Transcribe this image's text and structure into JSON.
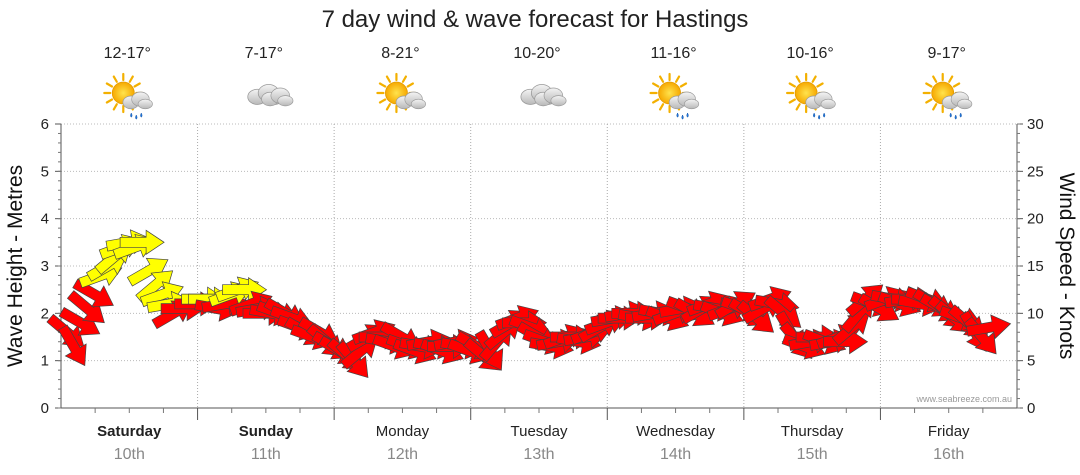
{
  "chart_data": {
    "type": "scatter",
    "title": "7 day wind & wave forecast for Hastings",
    "ylabel": "Wave Height - Metres",
    "y2label": "Wind Speed - Knots",
    "ylim": [
      0,
      6
    ],
    "y2lim": [
      0,
      30
    ],
    "yticks": [
      "0",
      "1",
      "2",
      "3",
      "4",
      "5",
      "6"
    ],
    "y2ticks": [
      "0",
      "5",
      "10",
      "15",
      "20",
      "25",
      "30"
    ],
    "grid": true,
    "credit": "www.seabreeze.com.au",
    "days": [
      {
        "name": "Saturday",
        "date": "10th",
        "bold": true,
        "temp": "12-17°",
        "icon": "sun-cloud-rain-icon"
      },
      {
        "name": "Sunday",
        "date": "11th",
        "bold": true,
        "temp": "7-17°",
        "icon": "cloud-icon"
      },
      {
        "name": "Monday",
        "date": "12th",
        "bold": false,
        "temp": "8-21°",
        "icon": "sun-cloud-icon"
      },
      {
        "name": "Tuesday",
        "date": "13th",
        "bold": false,
        "temp": "10-20°",
        "icon": "cloud-icon"
      },
      {
        "name": "Wednesday",
        "date": "14th",
        "bold": false,
        "temp": "11-16°",
        "icon": "sun-cloud-rain-icon"
      },
      {
        "name": "Thursday",
        "date": "15th",
        "bold": false,
        "temp": "10-16°",
        "icon": "sun-cloud-rain-icon"
      },
      {
        "name": "Friday",
        "date": "16th",
        "bold": false,
        "temp": "9-17°",
        "icon": "sun-cloud-rain-icon"
      }
    ],
    "series": [
      {
        "kind": "wind-arrows",
        "colors": {
          "light": "#ffff00",
          "strong": "#ff0000"
        },
        "points": [
          {
            "t": 0.0,
            "speed": 8,
            "dir": 40,
            "color": "strong"
          },
          {
            "t": 0.05,
            "speed": 6.5,
            "dir": 60,
            "color": "strong"
          },
          {
            "t": 0.1,
            "speed": 9,
            "dir": 30,
            "color": "strong"
          },
          {
            "t": 0.15,
            "speed": 10.5,
            "dir": 40,
            "color": "strong"
          },
          {
            "t": 0.2,
            "speed": 12,
            "dir": 30,
            "color": "strong"
          },
          {
            "t": 0.25,
            "speed": 14,
            "dir": -20,
            "color": "light"
          },
          {
            "t": 0.3,
            "speed": 15,
            "dir": -30,
            "color": "light"
          },
          {
            "t": 0.35,
            "speed": 16,
            "dir": -40,
            "color": "light"
          },
          {
            "t": 0.4,
            "speed": 17,
            "dir": -20,
            "color": "light"
          },
          {
            "t": 0.45,
            "speed": 17.5,
            "dir": -10,
            "color": "light"
          },
          {
            "t": 0.5,
            "speed": 17,
            "dir": -20,
            "color": "light"
          },
          {
            "t": 0.55,
            "speed": 17.5,
            "dir": 0,
            "color": "light"
          },
          {
            "t": 0.6,
            "speed": 14.5,
            "dir": -30,
            "color": "light"
          },
          {
            "t": 0.65,
            "speed": 13,
            "dir": -40,
            "color": "light"
          },
          {
            "t": 0.7,
            "speed": 12,
            "dir": -20,
            "color": "light"
          },
          {
            "t": 0.75,
            "speed": 11,
            "dir": -10,
            "color": "light"
          },
          {
            "t": 0.78,
            "speed": 10,
            "dir": -30,
            "color": "strong"
          },
          {
            "t": 0.85,
            "speed": 10.5,
            "dir": 0,
            "color": "strong"
          },
          {
            "t": 0.95,
            "speed": 11,
            "dir": 0,
            "color": "strong"
          },
          {
            "t": 1.0,
            "speed": 11.5,
            "dir": 0,
            "color": "light"
          },
          {
            "t": 1.05,
            "speed": 11.5,
            "dir": 0,
            "color": "light"
          },
          {
            "t": 1.1,
            "speed": 10.5,
            "dir": 10,
            "color": "strong"
          },
          {
            "t": 1.15,
            "speed": 11,
            "dir": -10,
            "color": "strong"
          },
          {
            "t": 1.2,
            "speed": 12,
            "dir": -20,
            "color": "light"
          },
          {
            "t": 1.25,
            "speed": 12.5,
            "dir": -20,
            "color": "light"
          },
          {
            "t": 1.3,
            "speed": 12.5,
            "dir": 0,
            "color": "light"
          },
          {
            "t": 1.35,
            "speed": 11,
            "dir": -20,
            "color": "strong"
          },
          {
            "t": 1.4,
            "speed": 10.5,
            "dir": -10,
            "color": "strong"
          },
          {
            "t": 1.45,
            "speed": 10,
            "dir": 0,
            "color": "strong"
          },
          {
            "t": 1.5,
            "speed": 10,
            "dir": 10,
            "color": "strong"
          },
          {
            "t": 1.55,
            "speed": 10,
            "dir": 20,
            "color": "strong"
          },
          {
            "t": 1.6,
            "speed": 10,
            "dir": 30,
            "color": "strong"
          },
          {
            "t": 1.65,
            "speed": 9.5,
            "dir": 20,
            "color": "strong"
          },
          {
            "t": 1.7,
            "speed": 8.5,
            "dir": 20,
            "color": "strong"
          },
          {
            "t": 1.75,
            "speed": 8,
            "dir": 30,
            "color": "strong"
          },
          {
            "t": 1.8,
            "speed": 7.5,
            "dir": 20,
            "color": "strong"
          },
          {
            "t": 1.85,
            "speed": 8,
            "dir": 30,
            "color": "strong"
          },
          {
            "t": 1.9,
            "speed": 7,
            "dir": 40,
            "color": "strong"
          },
          {
            "t": 1.95,
            "speed": 6.5,
            "dir": 30,
            "color": "strong"
          },
          {
            "t": 2.0,
            "speed": 6,
            "dir": 30,
            "color": "strong"
          },
          {
            "t": 2.05,
            "speed": 5.5,
            "dir": 40,
            "color": "strong"
          },
          {
            "t": 2.1,
            "speed": 5,
            "dir": 50,
            "color": "strong"
          },
          {
            "t": 2.15,
            "speed": 6,
            "dir": -40,
            "color": "strong"
          },
          {
            "t": 2.2,
            "speed": 7.5,
            "dir": -30,
            "color": "strong"
          },
          {
            "t": 2.25,
            "speed": 8,
            "dir": -20,
            "color": "strong"
          },
          {
            "t": 2.3,
            "speed": 7.5,
            "dir": 0,
            "color": "strong"
          },
          {
            "t": 2.35,
            "speed": 7,
            "dir": 10,
            "color": "strong"
          },
          {
            "t": 2.4,
            "speed": 6.5,
            "dir": 20,
            "color": "strong"
          },
          {
            "t": 2.45,
            "speed": 7.5,
            "dir": 30,
            "color": "strong"
          },
          {
            "t": 2.5,
            "speed": 6.5,
            "dir": 20,
            "color": "strong"
          },
          {
            "t": 2.55,
            "speed": 6,
            "dir": 20,
            "color": "strong"
          },
          {
            "t": 2.6,
            "speed": 6.5,
            "dir": 10,
            "color": "strong"
          },
          {
            "t": 2.65,
            "speed": 7,
            "dir": -10,
            "color": "strong"
          },
          {
            "t": 2.7,
            "speed": 6.5,
            "dir": 10,
            "color": "strong"
          },
          {
            "t": 2.75,
            "speed": 6,
            "dir": 20,
            "color": "strong"
          },
          {
            "t": 2.8,
            "speed": 6.5,
            "dir": 0,
            "color": "strong"
          },
          {
            "t": 2.85,
            "speed": 7,
            "dir": -10,
            "color": "strong"
          },
          {
            "t": 2.9,
            "speed": 6.5,
            "dir": 10,
            "color": "strong"
          },
          {
            "t": 2.95,
            "speed": 6,
            "dir": 20,
            "color": "strong"
          },
          {
            "t": 3.0,
            "speed": 6.5,
            "dir": 30,
            "color": "strong"
          },
          {
            "t": 3.05,
            "speed": 5.5,
            "dir": 40,
            "color": "strong"
          },
          {
            "t": 3.1,
            "speed": 6,
            "dir": 60,
            "color": "strong"
          },
          {
            "t": 3.15,
            "speed": 7,
            "dir": -50,
            "color": "strong"
          },
          {
            "t": 3.2,
            "speed": 8,
            "dir": -40,
            "color": "strong"
          },
          {
            "t": 3.25,
            "speed": 9,
            "dir": -30,
            "color": "strong"
          },
          {
            "t": 3.3,
            "speed": 9.5,
            "dir": -20,
            "color": "strong"
          },
          {
            "t": 3.35,
            "speed": 9,
            "dir": 0,
            "color": "strong"
          },
          {
            "t": 3.4,
            "speed": 8.5,
            "dir": 20,
            "color": "strong"
          },
          {
            "t": 3.45,
            "speed": 7.5,
            "dir": 30,
            "color": "strong"
          },
          {
            "t": 3.5,
            "speed": 7,
            "dir": 20,
            "color": "strong"
          },
          {
            "t": 3.55,
            "speed": 6.5,
            "dir": 10,
            "color": "strong"
          },
          {
            "t": 3.6,
            "speed": 7,
            "dir": -10,
            "color": "strong"
          },
          {
            "t": 3.65,
            "speed": 7.5,
            "dir": -20,
            "color": "strong"
          },
          {
            "t": 3.7,
            "speed": 7.5,
            "dir": 0,
            "color": "strong"
          },
          {
            "t": 3.75,
            "speed": 7,
            "dir": 10,
            "color": "strong"
          },
          {
            "t": 3.8,
            "speed": 7.5,
            "dir": -10,
            "color": "strong"
          },
          {
            "t": 3.85,
            "speed": 8,
            "dir": -20,
            "color": "strong"
          },
          {
            "t": 3.9,
            "speed": 8.5,
            "dir": -30,
            "color": "strong"
          },
          {
            "t": 3.95,
            "speed": 9,
            "dir": -20,
            "color": "strong"
          },
          {
            "t": 4.0,
            "speed": 9.5,
            "dir": -10,
            "color": "strong"
          },
          {
            "t": 4.05,
            "speed": 9.5,
            "dir": 0,
            "color": "strong"
          },
          {
            "t": 4.1,
            "speed": 10,
            "dir": -10,
            "color": "strong"
          },
          {
            "t": 4.15,
            "speed": 10,
            "dir": 0,
            "color": "strong"
          },
          {
            "t": 4.2,
            "speed": 9.5,
            "dir": 10,
            "color": "strong"
          },
          {
            "t": 4.25,
            "speed": 9.5,
            "dir": 0,
            "color": "strong"
          },
          {
            "t": 4.3,
            "speed": 10,
            "dir": -10,
            "color": "strong"
          },
          {
            "t": 4.35,
            "speed": 10,
            "dir": 10,
            "color": "strong"
          },
          {
            "t": 4.4,
            "speed": 9.5,
            "dir": 20,
            "color": "strong"
          },
          {
            "t": 4.45,
            "speed": 10,
            "dir": -20,
            "color": "strong"
          },
          {
            "t": 4.5,
            "speed": 10.5,
            "dir": -10,
            "color": "strong"
          },
          {
            "t": 4.55,
            "speed": 10.5,
            "dir": 20,
            "color": "strong"
          },
          {
            "t": 4.6,
            "speed": 10,
            "dir": 30,
            "color": "strong"
          },
          {
            "t": 4.65,
            "speed": 10.5,
            "dir": -30,
            "color": "strong"
          },
          {
            "t": 4.7,
            "speed": 11,
            "dir": -20,
            "color": "strong"
          },
          {
            "t": 4.75,
            "speed": 10.5,
            "dir": 10,
            "color": "strong"
          },
          {
            "t": 4.8,
            "speed": 10,
            "dir": 20,
            "color": "strong"
          },
          {
            "t": 4.85,
            "speed": 10.5,
            "dir": -20,
            "color": "strong"
          },
          {
            "t": 4.9,
            "speed": 11,
            "dir": -30,
            "color": "strong"
          },
          {
            "t": 4.95,
            "speed": 10.5,
            "dir": 20,
            "color": "strong"
          },
          {
            "t": 5.0,
            "speed": 10,
            "dir": 30,
            "color": "strong"
          },
          {
            "t": 5.05,
            "speed": 9.5,
            "dir": 40,
            "color": "strong"
          },
          {
            "t": 5.1,
            "speed": 10.5,
            "dir": -30,
            "color": "strong"
          },
          {
            "t": 5.15,
            "speed": 11.5,
            "dir": -20,
            "color": "strong"
          },
          {
            "t": 5.2,
            "speed": 11,
            "dir": 10,
            "color": "strong"
          },
          {
            "t": 5.25,
            "speed": 10,
            "dir": 40,
            "color": "strong"
          },
          {
            "t": 5.3,
            "speed": 8,
            "dir": 60,
            "color": "strong"
          },
          {
            "t": 5.35,
            "speed": 7,
            "dir": 50,
            "color": "strong"
          },
          {
            "t": 5.4,
            "speed": 6.5,
            "dir": 20,
            "color": "strong"
          },
          {
            "t": 5.45,
            "speed": 7,
            "dir": -10,
            "color": "strong"
          },
          {
            "t": 5.5,
            "speed": 7.5,
            "dir": 0,
            "color": "strong"
          },
          {
            "t": 5.55,
            "speed": 7,
            "dir": 20,
            "color": "strong"
          },
          {
            "t": 5.6,
            "speed": 7,
            "dir": -10,
            "color": "strong"
          },
          {
            "t": 5.65,
            "speed": 7.5,
            "dir": -20,
            "color": "strong"
          },
          {
            "t": 5.7,
            "speed": 7,
            "dir": 0,
            "color": "strong"
          },
          {
            "t": 5.75,
            "speed": 8.5,
            "dir": -40,
            "color": "strong"
          },
          {
            "t": 5.8,
            "speed": 10,
            "dir": -50,
            "color": "strong"
          },
          {
            "t": 5.85,
            "speed": 11.5,
            "dir": -40,
            "color": "strong"
          },
          {
            "t": 5.9,
            "speed": 11,
            "dir": 20,
            "color": "strong"
          },
          {
            "t": 5.95,
            "speed": 10.5,
            "dir": 30,
            "color": "strong"
          },
          {
            "t": 6.0,
            "speed": 11.5,
            "dir": -20,
            "color": "strong"
          },
          {
            "t": 6.05,
            "speed": 11.5,
            "dir": 10,
            "color": "strong"
          },
          {
            "t": 6.1,
            "speed": 11,
            "dir": 20,
            "color": "strong"
          },
          {
            "t": 6.15,
            "speed": 11.5,
            "dir": -10,
            "color": "strong"
          },
          {
            "t": 6.2,
            "speed": 11.5,
            "dir": 0,
            "color": "strong"
          },
          {
            "t": 6.25,
            "speed": 11,
            "dir": 10,
            "color": "strong"
          },
          {
            "t": 6.3,
            "speed": 11.5,
            "dir": 20,
            "color": "strong"
          },
          {
            "t": 6.35,
            "speed": 11,
            "dir": 30,
            "color": "strong"
          },
          {
            "t": 6.4,
            "speed": 10.5,
            "dir": 30,
            "color": "strong"
          },
          {
            "t": 6.45,
            "speed": 10,
            "dir": 40,
            "color": "strong"
          },
          {
            "t": 6.5,
            "speed": 9.5,
            "dir": 40,
            "color": "strong"
          },
          {
            "t": 6.55,
            "speed": 9.5,
            "dir": 20,
            "color": "strong"
          },
          {
            "t": 6.6,
            "speed": 9,
            "dir": 40,
            "color": "strong"
          },
          {
            "t": 6.65,
            "speed": 8,
            "dir": 60,
            "color": "strong"
          },
          {
            "t": 6.7,
            "speed": 7.5,
            "dir": 50,
            "color": "strong"
          },
          {
            "t": 6.75,
            "speed": 8.5,
            "dir": -10,
            "color": "strong"
          }
        ]
      }
    ]
  }
}
